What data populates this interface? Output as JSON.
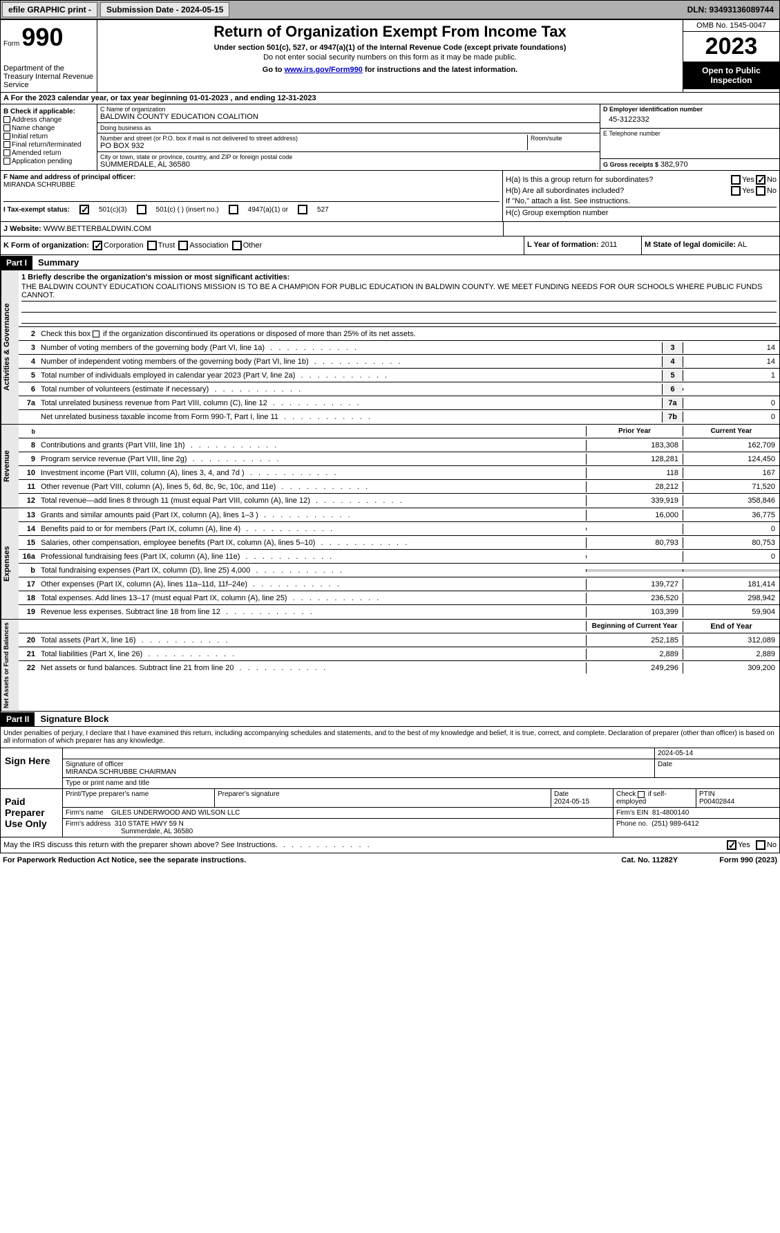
{
  "topbar": {
    "efile": "efile GRAPHIC print -",
    "submission": "Submission Date - 2024-05-15",
    "dln": "DLN: 93493136089744"
  },
  "header": {
    "form_label": "Form",
    "form_num": "990",
    "dept": "Department of the Treasury Internal Revenue Service",
    "title": "Return of Organization Exempt From Income Tax",
    "subtitle": "Under section 501(c), 527, or 4947(a)(1) of the Internal Revenue Code (except private foundations)",
    "note": "Do not enter social security numbers on this form as it may be made public.",
    "goto_prefix": "Go to ",
    "goto_link": "www.irs.gov/Form990",
    "goto_suffix": " for instructions and the latest information.",
    "omb": "OMB No. 1545-0047",
    "year": "2023",
    "open": "Open to Public Inspection"
  },
  "row_a": "A  For the 2023 calendar year, or tax year beginning 01-01-2023   , and ending 12-31-2023",
  "col_b": {
    "title": "B Check if applicable:",
    "items": [
      "Address change",
      "Name change",
      "Initial return",
      "Final return/terminated",
      "Amended return",
      "Application pending"
    ]
  },
  "col_c": {
    "name_label": "C Name of organization",
    "name": "BALDWIN COUNTY EDUCATION COALITION",
    "dba_label": "Doing business as",
    "addr_label": "Number and street (or P.O. box if mail is not delivered to street address)",
    "addr": "PO BOX 932",
    "room_label": "Room/suite",
    "city_label": "City or town, state or province, country, and ZIP or foreign postal code",
    "city": "SUMMERDALE, AL  36580"
  },
  "col_d": {
    "ein_label": "D Employer identification number",
    "ein": "45-3122332",
    "tel_label": "E Telephone number",
    "gross_label": "G Gross receipts $",
    "gross": "382,970"
  },
  "col_f": {
    "label": "F  Name and address of principal officer:",
    "name": "MIRANDA SCHRUBBE"
  },
  "col_h": {
    "ha_label": "H(a)  Is this a group return for subordinates?",
    "hb_label": "H(b)  Are all subordinates included?",
    "hb_note": "If \"No,\" attach a list. See instructions.",
    "hc_label": "H(c)  Group exemption number",
    "yes": "Yes",
    "no": "No"
  },
  "row_i": {
    "label": "I  Tax-exempt status:",
    "opt1": "501(c)(3)",
    "opt2": "501(c) (  ) (insert no.)",
    "opt3": "4947(a)(1) or",
    "opt4": "527"
  },
  "row_j": {
    "label": "J  Website:",
    "url": "WWW.BETTERBALDWIN.COM"
  },
  "row_k": {
    "label": "K Form of organization:",
    "opts": [
      "Corporation",
      "Trust",
      "Association",
      "Other"
    ]
  },
  "row_l": {
    "label": "L Year of formation:",
    "val": "2011"
  },
  "row_m": {
    "label": "M State of legal domicile:",
    "val": "AL"
  },
  "part1": {
    "hdr": "Part I",
    "title": "Summary",
    "mission_label": "1  Briefly describe the organization's mission or most significant activities:",
    "mission": "THE BALDWIN COUNTY EDUCATION COALITIONS MISSION IS TO BE A CHAMPION FOR PUBLIC EDUCATION IN BALDWIN COUNTY. WE MEET FUNDING NEEDS FOR OUR SCHOOLS WHERE PUBLIC FUNDS CANNOT.",
    "line2": "Check this box      if the organization discontinued its operations or disposed of more than 25% of its net assets.",
    "side1": "Activities & Governance",
    "side2": "Revenue",
    "side3": "Expenses",
    "side4": "Net Assets or Fund Balances",
    "gov_lines": [
      {
        "n": "3",
        "t": "Number of voting members of the governing body (Part VI, line 1a)",
        "b": "3",
        "v": "14"
      },
      {
        "n": "4",
        "t": "Number of independent voting members of the governing body (Part VI, line 1b)",
        "b": "4",
        "v": "14"
      },
      {
        "n": "5",
        "t": "Total number of individuals employed in calendar year 2023 (Part V, line 2a)",
        "b": "5",
        "v": "1"
      },
      {
        "n": "6",
        "t": "Total number of volunteers (estimate if necessary)",
        "b": "6",
        "v": ""
      },
      {
        "n": "7a",
        "t": "Total unrelated business revenue from Part VIII, column (C), line 12",
        "b": "7a",
        "v": "0"
      },
      {
        "n": "",
        "t": "Net unrelated business taxable income from Form 990-T, Part I, line 11",
        "b": "7b",
        "v": "0"
      }
    ],
    "prior": "Prior Year",
    "current": "Current Year",
    "rev_lines": [
      {
        "n": "8",
        "t": "Contributions and grants (Part VIII, line 1h)",
        "p": "183,308",
        "c": "162,709"
      },
      {
        "n": "9",
        "t": "Program service revenue (Part VIII, line 2g)",
        "p": "128,281",
        "c": "124,450"
      },
      {
        "n": "10",
        "t": "Investment income (Part VIII, column (A), lines 3, 4, and 7d )",
        "p": "118",
        "c": "167"
      },
      {
        "n": "11",
        "t": "Other revenue (Part VIII, column (A), lines 5, 6d, 8c, 9c, 10c, and 11e)",
        "p": "28,212",
        "c": "71,520"
      },
      {
        "n": "12",
        "t": "Total revenue—add lines 8 through 11 (must equal Part VIII, column (A), line 12)",
        "p": "339,919",
        "c": "358,846"
      }
    ],
    "exp_lines": [
      {
        "n": "13",
        "t": "Grants and similar amounts paid (Part IX, column (A), lines 1–3 )",
        "p": "16,000",
        "c": "36,775"
      },
      {
        "n": "14",
        "t": "Benefits paid to or for members (Part IX, column (A), line 4)",
        "p": "",
        "c": "0"
      },
      {
        "n": "15",
        "t": "Salaries, other compensation, employee benefits (Part IX, column (A), lines 5–10)",
        "p": "80,793",
        "c": "80,753"
      },
      {
        "n": "16a",
        "t": "Professional fundraising fees (Part IX, column (A), line 11e)",
        "p": "",
        "c": "0"
      },
      {
        "n": "b",
        "t": "Total fundraising expenses (Part IX, column (D), line 25) 4,000",
        "p": "SHADE",
        "c": "SHADE"
      },
      {
        "n": "17",
        "t": "Other expenses (Part IX, column (A), lines 11a–11d, 11f–24e)",
        "p": "139,727",
        "c": "181,414"
      },
      {
        "n": "18",
        "t": "Total expenses. Add lines 13–17 (must equal Part IX, column (A), line 25)",
        "p": "236,520",
        "c": "298,942"
      },
      {
        "n": "19",
        "t": "Revenue less expenses. Subtract line 18 from line 12",
        "p": "103,399",
        "c": "59,904"
      }
    ],
    "begin": "Beginning of Current Year",
    "end": "End of Year",
    "net_lines": [
      {
        "n": "20",
        "t": "Total assets (Part X, line 16)",
        "p": "252,185",
        "c": "312,089"
      },
      {
        "n": "21",
        "t": "Total liabilities (Part X, line 26)",
        "p": "2,889",
        "c": "2,889"
      },
      {
        "n": "22",
        "t": "Net assets or fund balances. Subtract line 21 from line 20",
        "p": "249,296",
        "c": "309,200"
      }
    ]
  },
  "part2": {
    "hdr": "Part II",
    "title": "Signature Block",
    "intro": "Under penalties of perjury, I declare that I have examined this return, including accompanying schedules and statements, and to the best of my knowledge and belief, it is true, correct, and complete. Declaration of preparer (other than officer) is based on all information of which preparer has any knowledge."
  },
  "sign": {
    "here": "Sign Here",
    "date": "2024-05-14",
    "sig_label": "Signature of officer",
    "officer": "MIRANDA SCHRUBBE  CHAIRMAN",
    "type_label": "Type or print name and title",
    "date_label": "Date"
  },
  "paid": {
    "title": "Paid Preparer Use Only",
    "print_label": "Print/Type preparer's name",
    "sig_label": "Preparer's signature",
    "date_label": "Date",
    "date": "2024-05-15",
    "check_label": "Check      if self-employed",
    "ptin_label": "PTIN",
    "ptin": "P00402844",
    "firm_name_label": "Firm's name",
    "firm_name": "GILES UNDERWOOD AND WILSON LLC",
    "firm_ein_label": "Firm's EIN",
    "firm_ein": "81-4800140",
    "firm_addr_label": "Firm's address",
    "firm_addr": "310 STATE HWY 59 N",
    "firm_city": "Summerdale, AL  36580",
    "phone_label": "Phone no.",
    "phone": "(251) 989-6412"
  },
  "footer": {
    "discuss": "May the IRS discuss this return with the preparer shown above? See Instructions.",
    "yes": "Yes",
    "no": "No",
    "paperwork": "For Paperwork Reduction Act Notice, see the separate instructions.",
    "cat": "Cat. No. 11282Y",
    "form": "Form 990 (2023)"
  }
}
